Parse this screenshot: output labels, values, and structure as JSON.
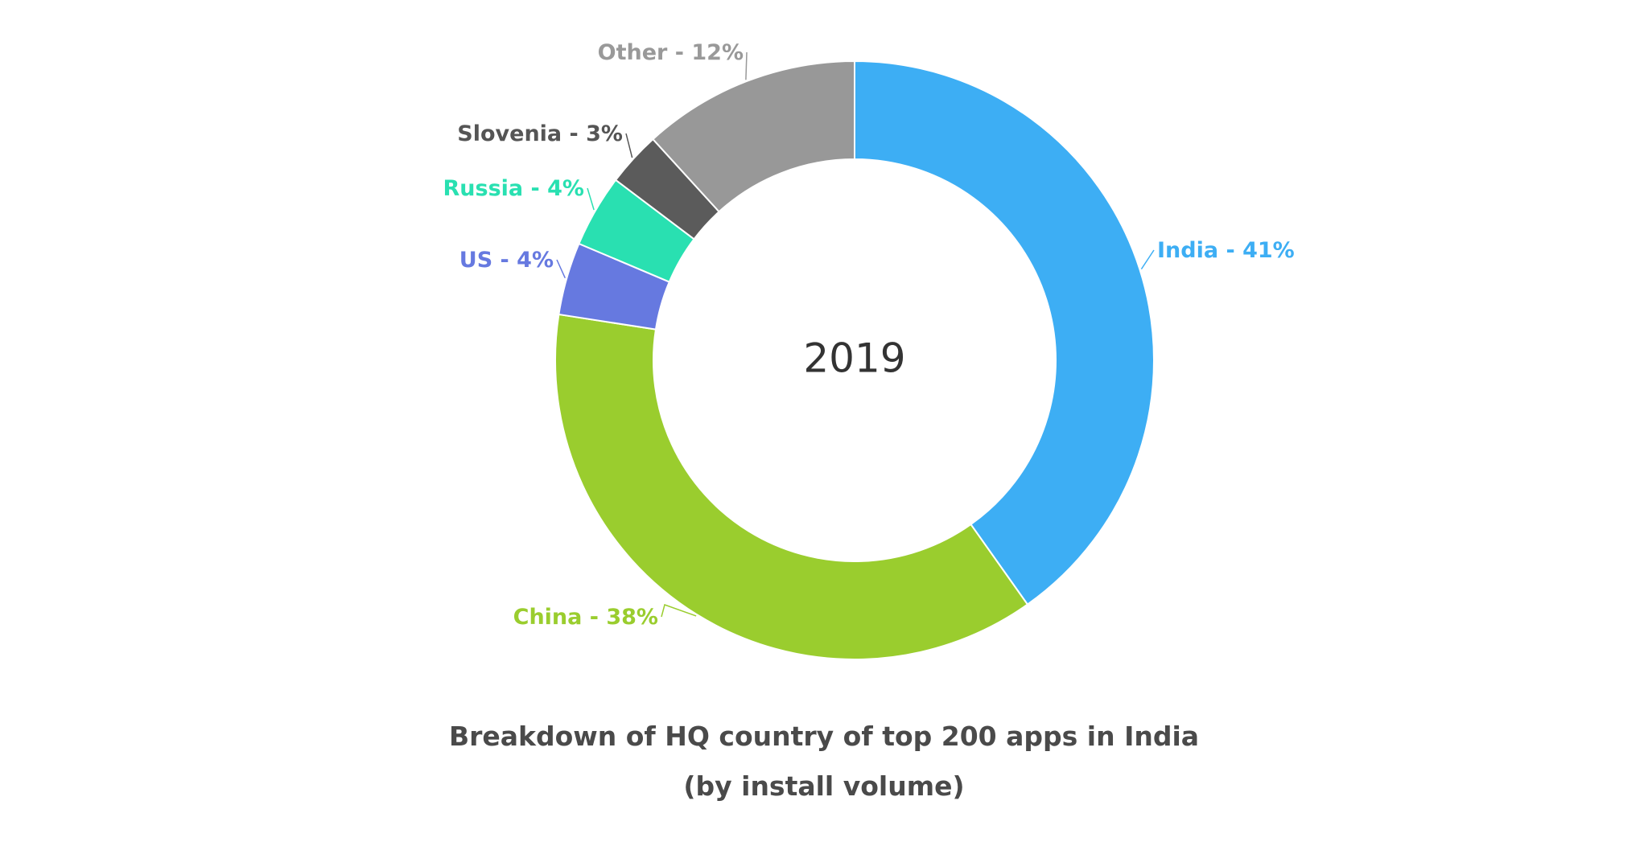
{
  "chart_data": {
    "type": "pie",
    "variant": "donut",
    "center_label": "2019",
    "title": "Breakdown of HQ country of top 200 apps in India",
    "subtitle": "(by install volume)",
    "slices": [
      {
        "name": "India",
        "value": 41,
        "label": "India - 41%",
        "color": "#3daef4"
      },
      {
        "name": "China",
        "value": 38,
        "label": "China - 38%",
        "color": "#9acd2e"
      },
      {
        "name": "US",
        "value": 4,
        "label": "US - 4%",
        "color": "#6679e0"
      },
      {
        "name": "Russia",
        "value": 4,
        "label": "Russia - 4%",
        "color": "#29e0b1"
      },
      {
        "name": "Slovenia",
        "value": 3,
        "label": "Slovenia - 3%",
        "color": "#5b5b5b"
      },
      {
        "name": "Other",
        "value": 12,
        "label": "Other - 12%",
        "color": "#989898"
      }
    ],
    "label_colors": {
      "India": "#3daef4",
      "China": "#9acd2e",
      "US": "#6679e0",
      "Russia": "#29e0b1",
      "Slovenia": "#555555",
      "Other": "#999999"
    }
  }
}
